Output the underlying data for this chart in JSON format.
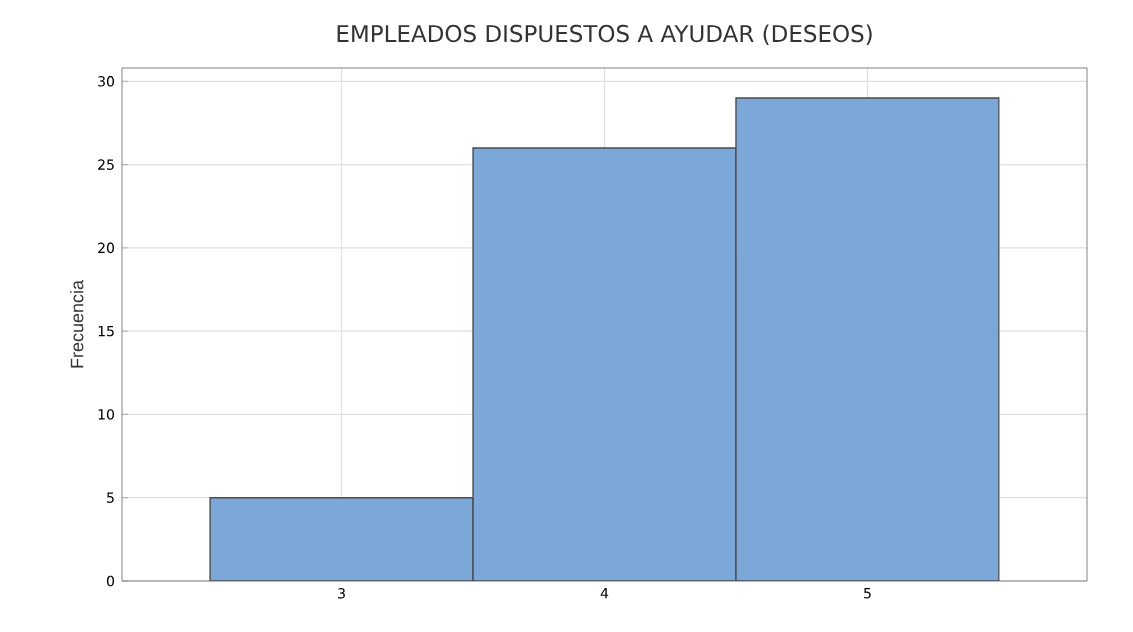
{
  "chart_data": {
    "type": "histogram",
    "title": "EMPLEADOS DISPUESTOS A AYUDAR (DESEOS)",
    "ylabel": "Frecuencia",
    "bins": [
      2.5,
      3.5,
      4.5,
      5.5
    ],
    "values": [
      5,
      26,
      29
    ],
    "color": "#7ba7d9",
    "xlim": [
      2.165,
      5.835
    ],
    "ylim": [
      0,
      30.8
    ],
    "xticks": [
      3,
      4,
      5
    ],
    "yticks": [
      0,
      5,
      10,
      15,
      20,
      25,
      30
    ],
    "grid": true
  }
}
